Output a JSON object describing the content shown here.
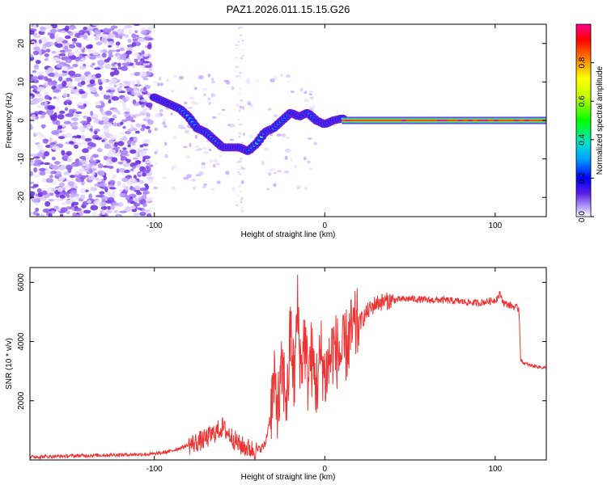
{
  "title": "PAZ1.2026.011.15.15.G26",
  "chart_data": [
    {
      "type": "heatmap",
      "xlabel": "Height of straight line (km)",
      "ylabel": "Frequency (Hz)",
      "xlim": [
        -173,
        130
      ],
      "ylim": [
        -25,
        25
      ],
      "xticks": [
        -100,
        0,
        100
      ],
      "yticks": [
        20,
        10,
        0,
        -10,
        -20
      ],
      "ridge": {
        "x": [
          -100,
          -95,
          -90,
          -85,
          -80,
          -75,
          -70,
          -65,
          -60,
          -55,
          -50,
          -45,
          -40,
          -35,
          -30,
          -25,
          -20,
          -15,
          -10,
          -5,
          0,
          5,
          10,
          20,
          40,
          60,
          80,
          100,
          120,
          130
        ],
        "y": [
          6,
          5,
          4,
          3,
          1,
          -2,
          -3,
          -5,
          -7,
          -7,
          -7,
          -8,
          -6,
          -3,
          -2,
          0,
          2,
          1,
          2,
          0,
          -1,
          0,
          0.5,
          0.1,
          0,
          0,
          0,
          0,
          0,
          0
        ]
      },
      "colorbar": {
        "label": "Normalized spectral amplitude",
        "ticks": [
          0.0,
          0.2,
          0.4,
          0.6,
          0.8
        ],
        "range": [
          0,
          1
        ]
      }
    },
    {
      "type": "line",
      "xlabel": "Height of straight line (km)",
      "ylabel": "SNR (10 * v/v)",
      "xlim": [
        -173,
        130
      ],
      "ylim": [
        0,
        6500
      ],
      "xticks": [
        -100,
        0,
        100
      ],
      "yticks": [
        2000,
        4000,
        6000
      ],
      "line_color": "#ee3333",
      "series": [
        {
          "name": "SNR",
          "x": [
            -173,
            -140,
            -100,
            -90,
            -80,
            -70,
            -65,
            -60,
            -55,
            -50,
            -45,
            -40,
            -35,
            -32,
            -30,
            -27,
            -25,
            -22,
            -20,
            -18,
            -16,
            -14,
            -12,
            -10,
            -8,
            -5,
            -2,
            0,
            5,
            10,
            15,
            20,
            25,
            30,
            40,
            50,
            60,
            70,
            80,
            90,
            95,
            100,
            103,
            105,
            110,
            114,
            115,
            116,
            118,
            120,
            125,
            130
          ],
          "y": [
            100,
            150,
            200,
            300,
            500,
            700,
            900,
            1100,
            800,
            500,
            400,
            300,
            500,
            1500,
            2500,
            1800,
            3000,
            2000,
            4500,
            2500,
            5200,
            3000,
            4200,
            2800,
            3500,
            2500,
            3600,
            2800,
            3800,
            3500,
            4200,
            4600,
            5000,
            5300,
            5400,
            5450,
            5400,
            5400,
            5350,
            5300,
            5350,
            5400,
            5600,
            5300,
            5200,
            5100,
            3400,
            3300,
            3250,
            3200,
            3150,
            3100
          ]
        }
      ]
    }
  ]
}
